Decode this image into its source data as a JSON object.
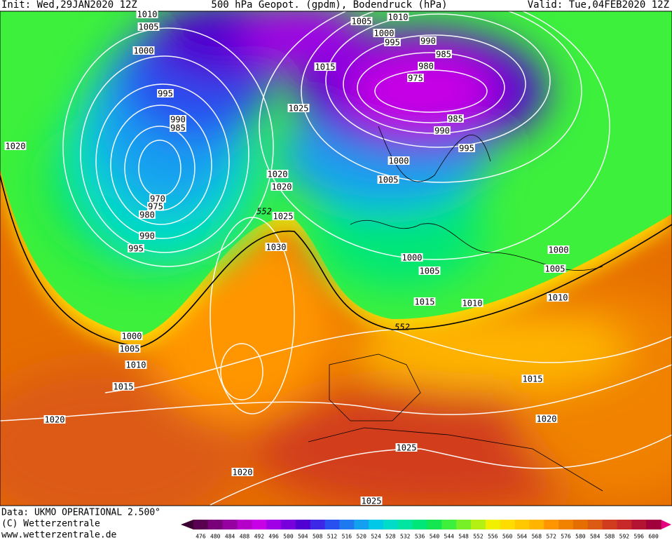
{
  "header": {
    "init": "Init: Wed,29JAN2020 12Z",
    "title": "500 hPa Geopot. (gpdm), Bodendruck (hPa)",
    "valid": "Valid: Tue,04FEB2020 12Z"
  },
  "isobar_labels": [
    1010,
    1005,
    1000,
    995,
    990,
    985,
    970,
    975,
    980,
    990,
    995,
    1020,
    1025,
    1015,
    1020,
    1020,
    1025,
    1030,
    1010,
    1005,
    1000,
    995,
    990,
    985,
    980,
    975,
    985,
    990,
    995,
    1000,
    1005,
    1000,
    1005,
    1015,
    1010,
    1010,
    1005,
    1000,
    1015,
    1020,
    1025,
    1025,
    1020,
    1000,
    1005,
    1010,
    1015,
    1020
  ],
  "geopotential_labels": [
    552,
    552
  ],
  "colorbar": {
    "values": [
      476,
      480,
      484,
      488,
      492,
      496,
      500,
      504,
      508,
      512,
      516,
      520,
      524,
      528,
      532,
      536,
      540,
      544,
      548,
      552,
      556,
      560,
      564,
      568,
      572,
      576,
      580,
      584,
      588,
      592,
      596,
      600
    ],
    "colors": [
      "#5a0050",
      "#780078",
      "#9600a0",
      "#b400c8",
      "#c800e6",
      "#a000e6",
      "#7800dc",
      "#5000d2",
      "#3c28e6",
      "#2850f0",
      "#1e78f0",
      "#14a0f0",
      "#00c8e6",
      "#00dcc8",
      "#00e6a0",
      "#00e678",
      "#14e650",
      "#3cf03c",
      "#78f028",
      "#b4f014",
      "#f0f000",
      "#ffdc00",
      "#ffc800",
      "#ffb400",
      "#ff9600",
      "#f08200",
      "#e66e00",
      "#dc5a14",
      "#d23c1e",
      "#c82828",
      "#b41432",
      "#a0003c"
    ]
  },
  "footer": {
    "data": "Data: UKMO OPERATIONAL 2.500°",
    "copyright": "(C) Wetterzentrale",
    "url": "www.wetterzentrale.de"
  }
}
